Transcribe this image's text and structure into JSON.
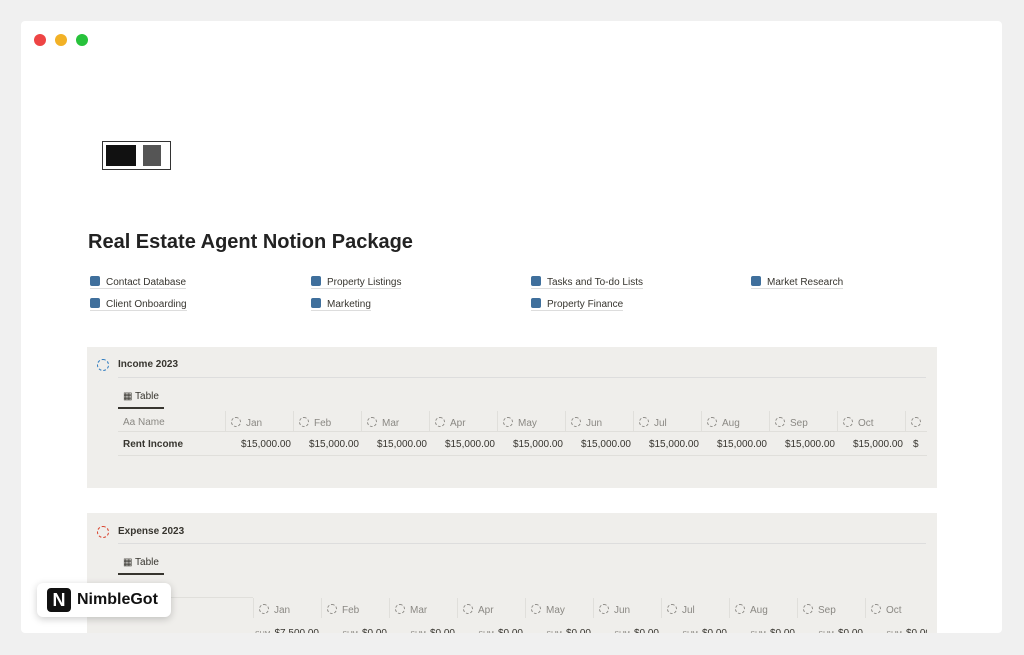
{
  "page": {
    "title": "Real Estate Agent Notion Package",
    "links": [
      "Contact Database",
      "Property Listings",
      "Tasks and To-do Lists",
      "Market Research",
      "Client Onboarding",
      "Marketing",
      "Property Finance"
    ],
    "income": {
      "title": "Income 2023",
      "tab": "Table",
      "name_icon": "Aa",
      "name_header": "Name",
      "months": [
        "Jan",
        "Feb",
        "Mar",
        "Apr",
        "May",
        "Jun",
        "Jul",
        "Aug",
        "Sep",
        "Oct"
      ],
      "row": {
        "name": "Rent Income",
        "values": [
          "$15,000.00",
          "$15,000.00",
          "$15,000.00",
          "$15,000.00",
          "$15,000.00",
          "$15,000.00",
          "$15,000.00",
          "$15,000.00",
          "$15,000.00",
          "$15,000.00",
          "$"
        ]
      }
    },
    "expense": {
      "title": "Expense 2023",
      "tab": "Table",
      "sum_label": "SUM",
      "months": [
        "Jan",
        "Feb",
        "Mar",
        "Apr",
        "May",
        "Jun",
        "Jul",
        "Aug",
        "Sep",
        "Oct"
      ],
      "sums": [
        "$7,500.00",
        "$0.00",
        "$0.00",
        "$0.00",
        "$0.00",
        "$0.00",
        "$0.00",
        "$0.00",
        "$0.00",
        "$0.00",
        "$0.0"
      ]
    },
    "brand": {
      "logo": "N",
      "name": "NimbleGot"
    }
  }
}
